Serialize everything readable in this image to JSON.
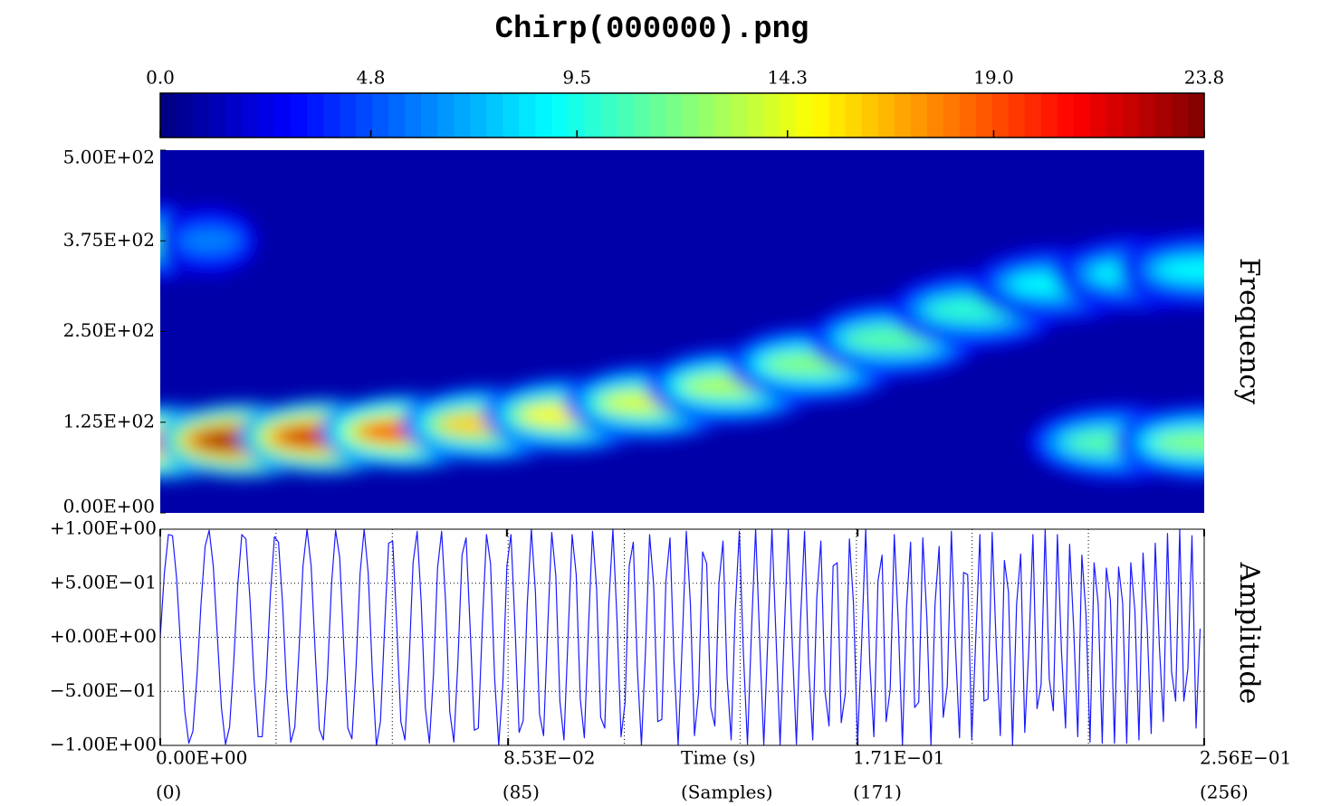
{
  "chart_data": [
    {
      "type": "heatmap",
      "title": "Chirp(000000).png",
      "zlim": [
        0,
        23.8
      ],
      "zticks": [
        {
          "value": 0,
          "label": "0.0"
        },
        4.8,
        9.5,
        14.3,
        {
          "value": 19,
          "label": "19.0"
        },
        23.8
      ],
      "xlim": [
        0,
        0.256
      ],
      "ylim": [
        0,
        500
      ],
      "yticks": [
        {
          "value": 0,
          "label": "0.00E+00"
        },
        {
          "value": 125,
          "label": "1.25E+02"
        },
        {
          "value": 250,
          "label": "2.50E+02"
        },
        {
          "value": 375,
          "label": "3.75E+02"
        },
        {
          "value": 500,
          "label": "5.00E+02"
        }
      ],
      "ylabel": "Frequency",
      "ridges": [
        {
          "x": [
            0,
            0.02,
            0.04,
            0.06,
            0.08,
            0.1,
            0.12,
            0.14,
            0.16,
            0.18,
            0.2,
            0.22,
            0.24,
            0.256
          ],
          "y": [
            97,
            100,
            105,
            112,
            122,
            135,
            152,
            175,
            205,
            240,
            280,
            315,
            330,
            335
          ],
          "values": [
            20,
            23,
            22,
            19,
            16,
            15,
            14,
            13,
            12,
            11,
            10,
            9,
            9,
            9
          ]
        },
        {
          "x": [
            0,
            0.012
          ],
          "y": [
            375,
            375
          ],
          "values": [
            10,
            6
          ]
        },
        {
          "x": [
            0.235,
            0.256
          ],
          "y": [
            97,
            97
          ],
          "values": [
            11,
            12
          ]
        }
      ]
    },
    {
      "type": "line",
      "color": "#1a1aff",
      "xlim": [
        0,
        0.256
      ],
      "xticks": [
        {
          "value": 0,
          "label": "0.00E+00"
        },
        {
          "value": 0.0853,
          "label": "8.53E−02"
        },
        {
          "value": 0.171,
          "label": "1.71E−01"
        },
        {
          "value": 0.256,
          "label": "2.56E−01"
        }
      ],
      "x2ticks": [
        {
          "value": 0,
          "label": "(0)"
        },
        {
          "value": 0.085,
          "label": "(85)"
        },
        {
          "value": 0.171,
          "label": "(171)"
        },
        {
          "value": 0.256,
          "label": "(256)"
        }
      ],
      "xgrid": [
        0.0284,
        0.0569,
        0.0853,
        0.1138,
        0.1422,
        0.1707,
        0.1991,
        0.2276
      ],
      "xlabel": "Time (s)",
      "x2label": "(Samples)",
      "ylim": [
        -1,
        1
      ],
      "yticks": [
        {
          "value": -1,
          "label": "−1.00E+00"
        },
        {
          "value": -0.5,
          "label": "−5.00E−01"
        },
        {
          "value": 0,
          "label": "+0.00E+00"
        },
        {
          "value": 0.5,
          "label": "+5.00E−01"
        },
        {
          "value": 1,
          "label": "+1.00E+00"
        }
      ],
      "ylabel": "Amplitude",
      "grid": true,
      "x": [
        0,
        0.001,
        0.002,
        0.003,
        0.004,
        0.005,
        0.006,
        0.007,
        0.008,
        0.009,
        0.01,
        0.011,
        0.012,
        0.013,
        0.014,
        0.015,
        0.016,
        0.017,
        0.018,
        0.019,
        0.02,
        0.021,
        0.022,
        0.023,
        0.024,
        0.025,
        0.026,
        0.027,
        0.028,
        0.029,
        0.03,
        0.031,
        0.032,
        0.033,
        0.034,
        0.035,
        0.036,
        0.037,
        0.038,
        0.039,
        0.04,
        0.041,
        0.042,
        0.043,
        0.044,
        0.045,
        0.046,
        0.047,
        0.048,
        0.049,
        0.05,
        0.051,
        0.052,
        0.053,
        0.054,
        0.055,
        0.056,
        0.057,
        0.058,
        0.059,
        0.06,
        0.061,
        0.062,
        0.063,
        0.064,
        0.065,
        0.066,
        0.067,
        0.068,
        0.069,
        0.07,
        0.071,
        0.072,
        0.073,
        0.074,
        0.075,
        0.076,
        0.077,
        0.078,
        0.079,
        0.08,
        0.081,
        0.082,
        0.083,
        0.084,
        0.085,
        0.086,
        0.087,
        0.088,
        0.089,
        0.09,
        0.091,
        0.092,
        0.093,
        0.094,
        0.095,
        0.096,
        0.097,
        0.098,
        0.099,
        0.1,
        0.101,
        0.102,
        0.103,
        0.104,
        0.105,
        0.106,
        0.107,
        0.108,
        0.109,
        0.11,
        0.111,
        0.112,
        0.113,
        0.114,
        0.115,
        0.116,
        0.117,
        0.118,
        0.119,
        0.12,
        0.121,
        0.122,
        0.123,
        0.124,
        0.125,
        0.126,
        0.127,
        0.128,
        0.129,
        0.13,
        0.131,
        0.132,
        0.133,
        0.134,
        0.135,
        0.136,
        0.137,
        0.138,
        0.139,
        0.14,
        0.141,
        0.142,
        0.143,
        0.144,
        0.145,
        0.146,
        0.147,
        0.148,
        0.149,
        0.15,
        0.151,
        0.152,
        0.153,
        0.154,
        0.155,
        0.156,
        0.157,
        0.158,
        0.159,
        0.16,
        0.161,
        0.162,
        0.163,
        0.164,
        0.165,
        0.166,
        0.167,
        0.168,
        0.169,
        0.17,
        0.171,
        0.172,
        0.173,
        0.174,
        0.175,
        0.176,
        0.177,
        0.178,
        0.179,
        0.18,
        0.181,
        0.182,
        0.183,
        0.184,
        0.185,
        0.186,
        0.187,
        0.188,
        0.189,
        0.19,
        0.191,
        0.192,
        0.193,
        0.194,
        0.195,
        0.196,
        0.197,
        0.198,
        0.199,
        0.2,
        0.201,
        0.202,
        0.203,
        0.204,
        0.205,
        0.206,
        0.207,
        0.208,
        0.209,
        0.21,
        0.211,
        0.212,
        0.213,
        0.214,
        0.215,
        0.216,
        0.217,
        0.218,
        0.219,
        0.22,
        0.221,
        0.222,
        0.223,
        0.224,
        0.225,
        0.226,
        0.227,
        0.228,
        0.229,
        0.23,
        0.231,
        0.232,
        0.233,
        0.234,
        0.235,
        0.236,
        0.237,
        0.238,
        0.239,
        0.24,
        0.241,
        0.242,
        0.243,
        0.244,
        0.245,
        0.246,
        0.247,
        0.248,
        0.249,
        0.25,
        0.251,
        0.252,
        0.253,
        0.254,
        0.255
      ],
      "values": [
        0,
        0.59,
        0.95,
        0.94,
        0.55,
        -0.08,
        -0.68,
        -0.98,
        -0.87,
        -0.36,
        0.31,
        0.84,
        0.99,
        0.66,
        0.01,
        -0.65,
        -0.99,
        -0.83,
        -0.24,
        0.48,
        0.95,
        0.91,
        0.35,
        -0.39,
        -0.92,
        -0.92,
        -0.38,
        0.39,
        0.93,
        0.88,
        0.31,
        -0.48,
        -0.97,
        -0.83,
        -0.14,
        0.66,
        1,
        0.66,
        -0.14,
        -0.85,
        -0.95,
        -0.36,
        0.49,
        0.99,
        0.74,
        -0.08,
        -0.84,
        -0.94,
        -0.29,
        0.59,
        1,
        0.59,
        -0.32,
        -1,
        -0.78,
        0.08,
        0.87,
        0.89,
        0.11,
        -0.78,
        -0.95,
        -0.25,
        0.69,
        0.98,
        0.32,
        -0.65,
        -0.98,
        -0.34,
        0.64,
        0.98,
        0.31,
        -0.69,
        -0.97,
        -0.22,
        0.76,
        0.92,
        0.08,
        -0.86,
        -0.84,
        0.13,
        0.95,
        0.68,
        -0.38,
        -1,
        -0.44,
        0.66,
        0.95,
        0.1,
        -0.88,
        -0.77,
        0.31,
        1,
        0.42,
        -0.71,
        -0.91,
        0.08,
        0.97,
        0.57,
        -0.59,
        -0.95,
        0,
        0.95,
        0.58,
        -0.57,
        -0.93,
        0.08,
        0.98,
        0.45,
        -0.74,
        -0.84,
        0.31,
        1,
        0.17,
        -0.92,
        -0.6,
        0.66,
        0.88,
        -0.28,
        -1,
        -0.12,
        0.95,
        0.48,
        -0.78,
        -0.76,
        0.52,
        0.92,
        -0.24,
        -1,
        -0.05,
        0.98,
        0.31,
        -0.91,
        -0.52,
        0.79,
        0.68,
        -0.65,
        -0.82,
        0.5,
        0.89,
        -0.37,
        -0.95,
        0.25,
        0.98,
        -0.15,
        -0.99,
        0.08,
        1,
        -0.03,
        -1,
        0,
        1,
        0,
        -1,
        0.03,
        1,
        -0.08,
        -0.99,
        0.15,
        0.98,
        -0.25,
        -0.95,
        0.37,
        0.89,
        -0.5,
        -0.82,
        0.66,
        0.69,
        -0.79,
        -0.52,
        0.91,
        0.31,
        -0.98,
        -0.05,
        1,
        -0.24,
        -0.92,
        0.52,
        0.76,
        -0.78,
        -0.48,
        0.95,
        0.12,
        -1,
        0.28,
        0.88,
        -0.65,
        -0.6,
        0.92,
        0.17,
        -1,
        0.31,
        0.84,
        -0.74,
        -0.45,
        0.98,
        -0.08,
        -0.93,
        0.6,
        0.58,
        -0.95,
        0,
        0.95,
        -0.59,
        -0.57,
        0.97,
        -0.08,
        -0.91,
        0.71,
        0.42,
        -1,
        0.31,
        0.77,
        -0.88,
        -0.1,
        0.95,
        -0.66,
        -0.44,
        1,
        -0.38,
        -0.68,
        0.95,
        -0.13,
        -0.84,
        0.86,
        0.08,
        -0.92,
        0.76,
        0.22,
        -0.97,
        0.69,
        0.31,
        -0.98,
        0.64,
        0.34,
        -0.98,
        0.65,
        0.32,
        -0.98,
        0.69,
        0.25,
        -0.95,
        0.78,
        0.11,
        -0.89,
        0.87,
        -0.08,
        -0.78,
        0.96,
        -0.32,
        -0.59,
        1,
        -0.59,
        -0.29,
        0.94,
        -0.84,
        0.08
      ]
    }
  ]
}
